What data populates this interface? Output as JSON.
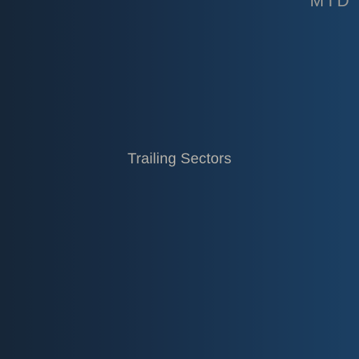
{
  "header": {
    "period_label": "MTD"
  },
  "main": {
    "title": "Trailing Sectors"
  },
  "colors": {
    "background_left": "#162638",
    "background_right": "#1b3f63",
    "text_muted": "#b3b0a8"
  }
}
